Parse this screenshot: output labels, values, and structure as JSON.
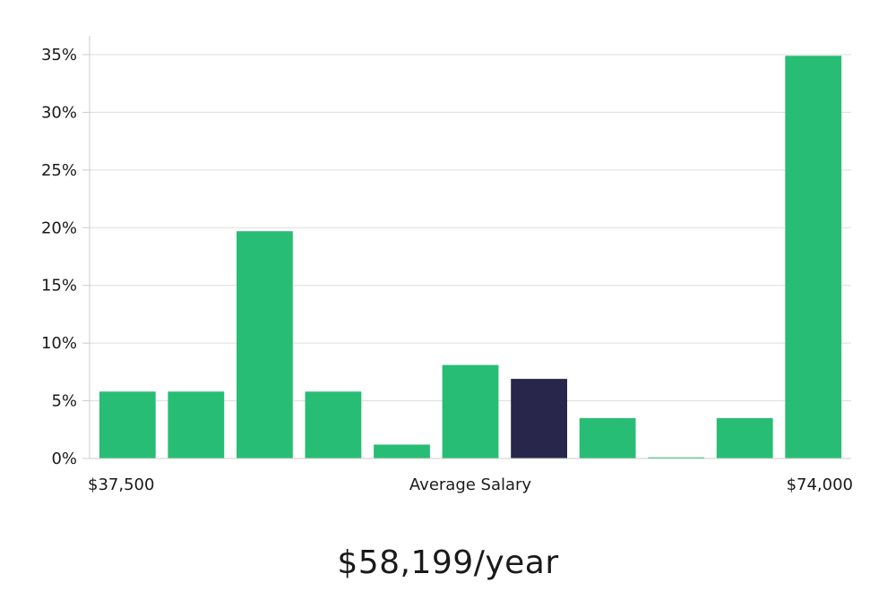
{
  "summary": {
    "salary_text": "$58,199/year"
  },
  "chart_data": {
    "type": "bar",
    "x_range_labels": {
      "min": "$37,500",
      "center": "Average Salary",
      "max": "$74,000"
    },
    "y_ticks": [
      "0%",
      "5%",
      "10%",
      "15%",
      "20%",
      "25%",
      "30%",
      "35%"
    ],
    "ylim": [
      0,
      35
    ],
    "values": [
      5.8,
      5.8,
      19.7,
      5.8,
      1.2,
      8.1,
      6.9,
      3.5,
      0.1,
      3.5,
      34.9
    ],
    "highlight_index": 6,
    "colors": {
      "bar": "#28bd74",
      "highlight": "#28264a",
      "grid": "#dddddd",
      "axis": "#cccccc"
    },
    "grid": true
  }
}
